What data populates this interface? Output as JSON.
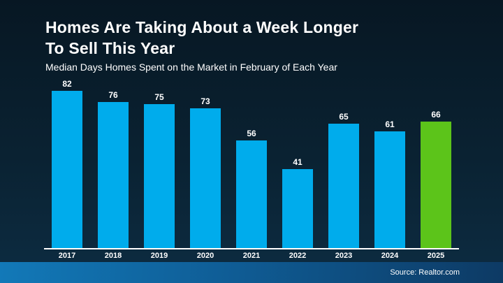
{
  "slide": {
    "title": "Homes Are Taking About a Week Longer\nTo Sell This Year",
    "subtitle": "Median Days Homes Spent on the Market in February of Each Year",
    "source": "Source: Realtor.com"
  },
  "colors": {
    "bar_default": "#00ACEC",
    "bar_highlight": "#5CC41A",
    "background_top": "#071723",
    "background_bottom": "#0D2C42",
    "footer_left": "#1279B8",
    "footer_right": "#0D3A64",
    "axis_line": "#FFFFFF",
    "text": "#FFFFFF"
  },
  "chart_data": {
    "type": "bar",
    "title": "Homes Are Taking About a Week Longer To Sell This Year",
    "subtitle": "Median Days Homes Spent on the Market in February of Each Year",
    "categories": [
      "2017",
      "2018",
      "2019",
      "2020",
      "2021",
      "2022",
      "2023",
      "2024",
      "2025"
    ],
    "values": [
      82,
      76,
      75,
      73,
      56,
      41,
      65,
      61,
      66
    ],
    "value_labels_shown": true,
    "xlabel": "",
    "ylabel": "Median days homes spent on the market",
    "ylim": [
      0,
      90
    ],
    "grid": false,
    "legend": false,
    "highlight_index": 8,
    "bar_color_default": "#00ACEC",
    "bar_color_highlight": "#5CC41A",
    "source": "Source: Realtor.com"
  }
}
